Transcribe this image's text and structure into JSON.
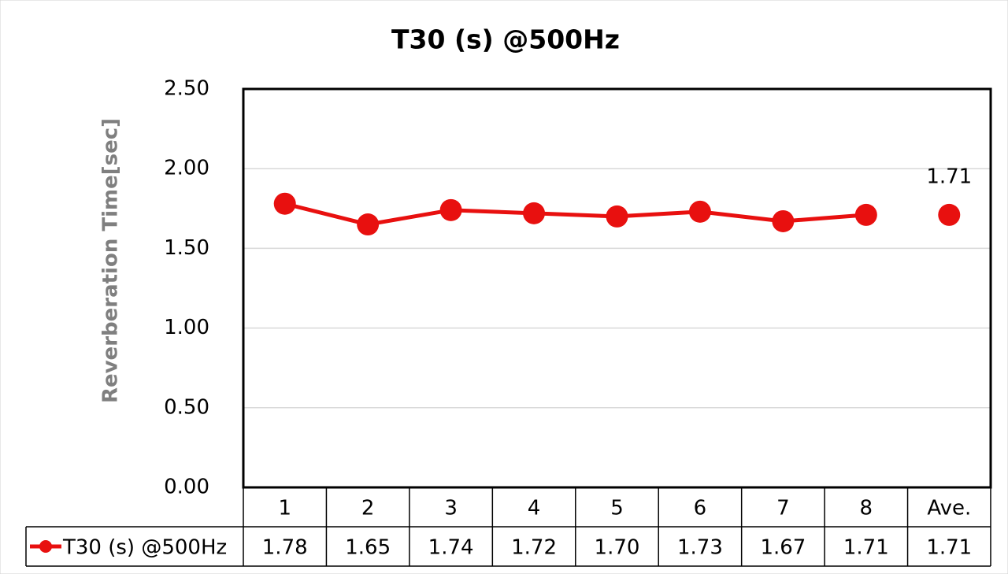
{
  "chart_data": {
    "type": "line",
    "title": "T30 (s) @500Hz",
    "y_label": "Reverberation Time[sec]",
    "categories": [
      "1",
      "2",
      "3",
      "4",
      "5",
      "6",
      "7",
      "8",
      "Ave."
    ],
    "series": [
      {
        "name": "T30 (s) @500Hz",
        "color": "#e8100f",
        "values": [
          1.78,
          1.65,
          1.74,
          1.72,
          1.7,
          1.73,
          1.67,
          1.71,
          1.71
        ],
        "value_labels": [
          "1.78",
          "1.65",
          "1.74",
          "1.72",
          "1.70",
          "1.73",
          "1.67",
          "1.71",
          "1.71"
        ]
      }
    ],
    "connect_last_point": false,
    "labeled_points": [
      8
    ],
    "ylim": [
      0,
      2.5
    ],
    "yticks": [
      {
        "value": 0,
        "label": "0.00"
      },
      {
        "value": 0.5,
        "label": "0.50"
      },
      {
        "value": 1,
        "label": "1.00"
      },
      {
        "value": 1.5,
        "label": "1.50"
      },
      {
        "value": 2,
        "label": "2.00"
      },
      {
        "value": 2.5,
        "label": "2.50"
      }
    ],
    "grid": true,
    "data_table": true
  }
}
